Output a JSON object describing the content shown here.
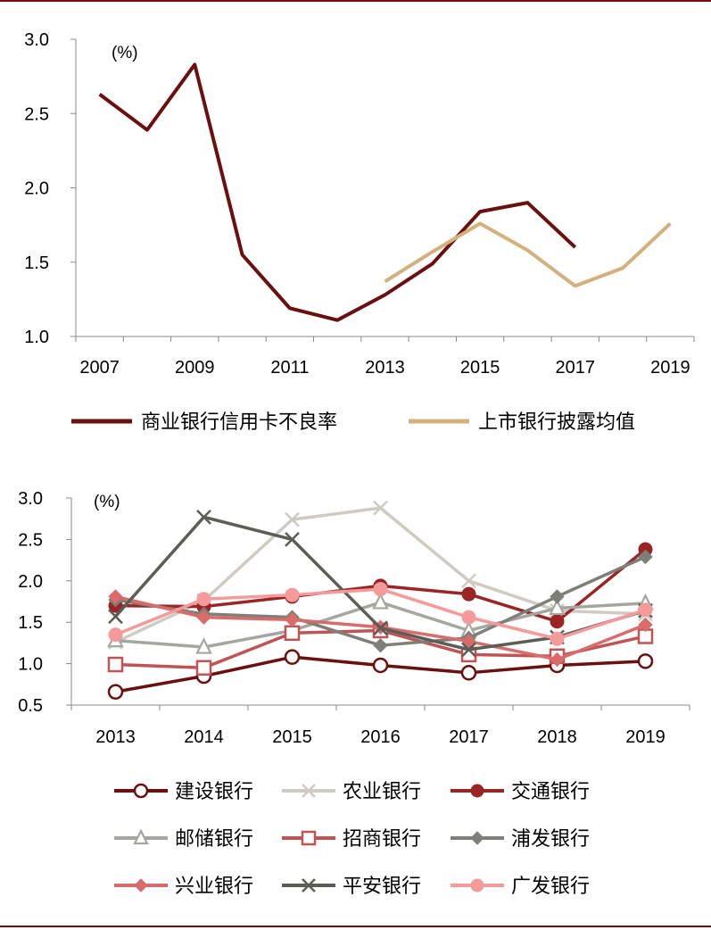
{
  "colors": {
    "frame": "#7a0c0c"
  },
  "chart_data": [
    {
      "type": "line",
      "unit_label": "(%)",
      "x": [
        2007,
        2008,
        2009,
        2010,
        2011,
        2012,
        2013,
        2014,
        2015,
        2016,
        2017,
        2018,
        2019
      ],
      "x_tick_labels": [
        "2007",
        "2009",
        "2011",
        "2013",
        "2015",
        "2017",
        "2019"
      ],
      "y_tick_labels": [
        "1.0",
        "1.5",
        "2.0",
        "2.5",
        "3.0"
      ],
      "ylim": [
        1.0,
        3.0
      ],
      "grid": false,
      "legend_position": "bottom",
      "series": [
        {
          "name": "商业银行信用卡不良率",
          "color": "#6b0f0f",
          "values": [
            2.63,
            2.39,
            2.83,
            1.55,
            1.19,
            1.11,
            1.28,
            1.49,
            1.84,
            1.9,
            1.6,
            null,
            null
          ]
        },
        {
          "name": "上市银行披露均值",
          "color": "#d4b07c",
          "values": [
            null,
            null,
            null,
            null,
            null,
            null,
            1.37,
            1.57,
            1.76,
            1.58,
            1.34,
            1.46,
            1.76
          ]
        }
      ]
    },
    {
      "type": "line",
      "unit_label": "(%)",
      "x": [
        2013,
        2014,
        2015,
        2016,
        2017,
        2018,
        2019
      ],
      "x_tick_labels": [
        "2013",
        "2014",
        "2015",
        "2016",
        "2017",
        "2018",
        "2019"
      ],
      "y_tick_labels": [
        "0.5",
        "1.0",
        "1.5",
        "2.0",
        "2.5",
        "3.0"
      ],
      "ylim": [
        0.5,
        3.0
      ],
      "grid": false,
      "legend_position": "bottom",
      "series": [
        {
          "name": "建设银行",
          "color": "#6b0f0f",
          "marker": "circle-open",
          "values": [
            0.66,
            0.85,
            1.08,
            0.98,
            0.89,
            0.98,
            1.03
          ]
        },
        {
          "name": "农业银行",
          "color": "#cfcbc3",
          "marker": "x",
          "values": [
            1.26,
            1.76,
            2.74,
            2.88,
            2.0,
            1.64,
            1.6
          ]
        },
        {
          "name": "交通银行",
          "color": "#9b2525",
          "marker": "circle-filled",
          "values": [
            1.7,
            1.69,
            1.81,
            1.94,
            1.84,
            1.51,
            2.38
          ]
        },
        {
          "name": "邮储银行",
          "color": "#a6a6a1",
          "marker": "triangle-open",
          "values": [
            1.28,
            1.2,
            1.4,
            1.74,
            1.4,
            1.67,
            1.73
          ]
        },
        {
          "name": "招商银行",
          "color": "#c05454",
          "marker": "square-open",
          "values": [
            0.99,
            0.95,
            1.37,
            1.4,
            1.11,
            1.09,
            1.33
          ]
        },
        {
          "name": "浦发银行",
          "color": "#7f7f7a",
          "marker": "diamond-filled",
          "values": [
            1.77,
            1.6,
            1.56,
            1.22,
            1.31,
            1.81,
            2.29
          ]
        },
        {
          "name": "兴业银行",
          "color": "#d96b6b",
          "marker": "diamond-filled",
          "values": [
            1.81,
            1.56,
            1.53,
            1.44,
            1.27,
            1.05,
            1.47
          ]
        },
        {
          "name": "平安银行",
          "color": "#5a5e55",
          "marker": "x",
          "values": [
            1.57,
            2.77,
            2.5,
            1.43,
            1.17,
            1.32,
            1.64
          ]
        },
        {
          "name": "广发银行",
          "color": "#f59a9a",
          "marker": "circle-filled",
          "values": [
            1.35,
            1.78,
            1.83,
            1.9,
            1.56,
            1.3,
            1.65
          ]
        }
      ]
    }
  ]
}
